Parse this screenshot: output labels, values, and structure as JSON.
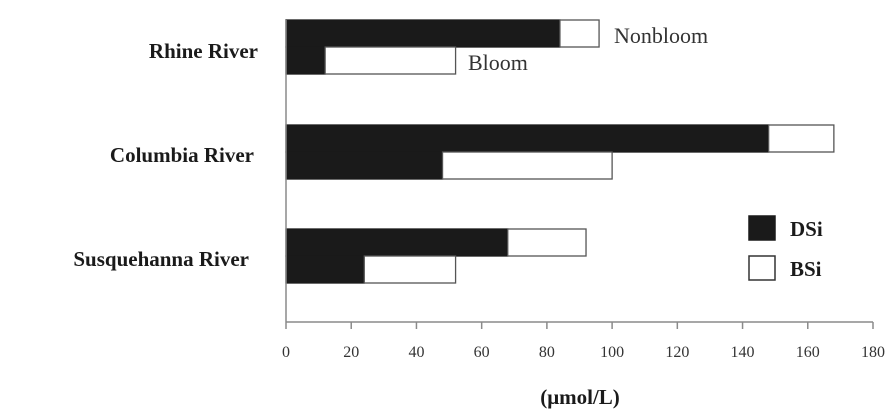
{
  "chart_data": {
    "type": "bar",
    "orientation": "horizontal",
    "stacked": true,
    "categories": [
      "Rhine River",
      "Columbia River",
      "Susquehanna  River"
    ],
    "groups": [
      {
        "name": "Nonbloom",
        "series": [
          {
            "name": "DSi",
            "values": [
              84,
              148,
              68
            ]
          },
          {
            "name": "BSi",
            "values": [
              12,
              20,
              24
            ]
          }
        ]
      },
      {
        "name": "Bloom",
        "series": [
          {
            "name": "DSi",
            "values": [
              12,
              48,
              24
            ]
          },
          {
            "name": "BSi",
            "values": [
              40,
              52,
              28
            ]
          }
        ]
      }
    ],
    "annotations": [
      "Nonbloom",
      "Bloom"
    ],
    "xlabel": "(μmol/L)",
    "xlim": [
      0,
      180
    ],
    "xticks": [
      0,
      20,
      40,
      60,
      80,
      100,
      120,
      140,
      160,
      180
    ],
    "legend": {
      "position": "right",
      "entries": [
        {
          "name": "DSi",
          "color": "#1a1a1a"
        },
        {
          "name": "BSi",
          "color": "#ffffff"
        }
      ]
    },
    "grid": false
  }
}
